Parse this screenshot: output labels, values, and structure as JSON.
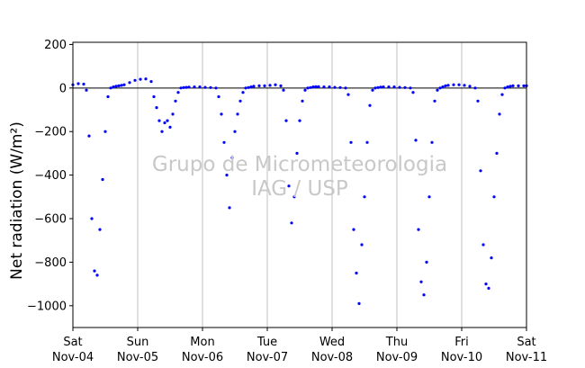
{
  "chart_data": {
    "type": "scatter",
    "title": "",
    "ylabel": "Net radiation (W/m²)",
    "ylim": [
      -1100,
      210
    ],
    "xlim": [
      "2017-11-04",
      "2017-11-11"
    ],
    "yticks": [
      200,
      0,
      -200,
      -400,
      -600,
      -800,
      -1000
    ],
    "xticks": [
      {
        "day": "Sat",
        "date": "Nov-04"
      },
      {
        "day": "Sun",
        "date": "Nov-05"
      },
      {
        "day": "Mon",
        "date": "Nov-06"
      },
      {
        "day": "Tue",
        "date": "Nov-07"
      },
      {
        "day": "Wed",
        "date": "Nov-08"
      },
      {
        "day": "Thu",
        "date": "Nov-09"
      },
      {
        "day": "Fri",
        "date": "Nov-10"
      },
      {
        "day": "Sat",
        "date": "Nov-11"
      }
    ],
    "grid": "vertical",
    "zero_line": true,
    "marker_color": "#0000ff",
    "watermark": [
      "Grupo de Micrometeorologia",
      "IAG / USP"
    ],
    "series": [
      {
        "name": "",
        "x": [
          "2017-11-04 00:00",
          "2017-11-04 02:00",
          "2017-11-04 04:00",
          "2017-11-04 05:00",
          "2017-11-04 06:00",
          "2017-11-04 07:00",
          "2017-11-04 08:00",
          "2017-11-04 09:00",
          "2017-11-04 10:00",
          "2017-11-04 11:00",
          "2017-11-04 12:00",
          "2017-11-04 13:00",
          "2017-11-04 14:00",
          "2017-11-04 15:00",
          "2017-11-04 16:00",
          "2017-11-04 17:00",
          "2017-11-04 18:00",
          "2017-11-04 19:00",
          "2017-11-04 21:00",
          "2017-11-04 23:00",
          "2017-11-05 01:00",
          "2017-11-05 03:00",
          "2017-11-05 05:00",
          "2017-11-05 06:00",
          "2017-11-05 07:00",
          "2017-11-05 08:00",
          "2017-11-05 09:00",
          "2017-11-05 10:00",
          "2017-11-05 11:00",
          "2017-11-05 12:00",
          "2017-11-05 13:00",
          "2017-11-05 14:00",
          "2017-11-05 15:00",
          "2017-11-05 16:00",
          "2017-11-05 17:00",
          "2017-11-05 18:00",
          "2017-11-05 19:00",
          "2017-11-05 21:00",
          "2017-11-05 23:00",
          "2017-11-06 01:00",
          "2017-11-06 03:00",
          "2017-11-06 05:00",
          "2017-11-06 06:00",
          "2017-11-06 07:00",
          "2017-11-06 08:00",
          "2017-11-06 09:00",
          "2017-11-06 10:00",
          "2017-11-06 11:00",
          "2017-11-06 12:00",
          "2017-11-06 13:00",
          "2017-11-06 14:00",
          "2017-11-06 15:00",
          "2017-11-06 16:00",
          "2017-11-06 17:00",
          "2017-11-06 18:00",
          "2017-11-06 19:00",
          "2017-11-06 21:00",
          "2017-11-06 23:00",
          "2017-11-07 01:00",
          "2017-11-07 03:00",
          "2017-11-07 05:00",
          "2017-11-07 06:00",
          "2017-11-07 07:00",
          "2017-11-07 08:00",
          "2017-11-07 09:00",
          "2017-11-07 10:00",
          "2017-11-07 11:00",
          "2017-11-07 12:00",
          "2017-11-07 13:00",
          "2017-11-07 14:00",
          "2017-11-07 15:00",
          "2017-11-07 16:00",
          "2017-11-07 17:00",
          "2017-11-07 18:00",
          "2017-11-07 19:00",
          "2017-11-07 21:00",
          "2017-11-07 23:00",
          "2017-11-08 01:00",
          "2017-11-08 03:00",
          "2017-11-08 05:00",
          "2017-11-08 06:00",
          "2017-11-08 07:00",
          "2017-11-08 08:00",
          "2017-11-08 09:00",
          "2017-11-08 10:00",
          "2017-11-08 11:00",
          "2017-11-08 12:00",
          "2017-11-08 13:00",
          "2017-11-08 14:00",
          "2017-11-08 15:00",
          "2017-11-08 16:00",
          "2017-11-08 17:00",
          "2017-11-08 18:00",
          "2017-11-08 19:00",
          "2017-11-08 21:00",
          "2017-11-08 23:00",
          "2017-11-09 01:00",
          "2017-11-09 03:00",
          "2017-11-09 05:00",
          "2017-11-09 06:00",
          "2017-11-09 07:00",
          "2017-11-09 08:00",
          "2017-11-09 09:00",
          "2017-11-09 10:00",
          "2017-11-09 11:00",
          "2017-11-09 12:00",
          "2017-11-09 13:00",
          "2017-11-09 14:00",
          "2017-11-09 15:00",
          "2017-11-09 16:00",
          "2017-11-09 17:00",
          "2017-11-09 18:00",
          "2017-11-09 19:00",
          "2017-11-09 21:00",
          "2017-11-09 23:00",
          "2017-11-10 01:00",
          "2017-11-10 03:00",
          "2017-11-10 05:00",
          "2017-11-10 06:00",
          "2017-11-10 07:00",
          "2017-11-10 08:00",
          "2017-11-10 09:00",
          "2017-11-10 10:00",
          "2017-11-10 11:00",
          "2017-11-10 12:00",
          "2017-11-10 13:00",
          "2017-11-10 14:00",
          "2017-11-10 15:00",
          "2017-11-10 16:00",
          "2017-11-10 17:00",
          "2017-11-10 18:00",
          "2017-11-10 19:00",
          "2017-11-10 21:00",
          "2017-11-10 23:00",
          "2017-11-11 00:00"
        ],
        "y": [
          15,
          20,
          18,
          -10,
          -220,
          -600,
          -840,
          -860,
          -650,
          -420,
          -200,
          -40,
          0,
          5,
          8,
          10,
          12,
          15,
          25,
          35,
          40,
          42,
          30,
          -40,
          -90,
          -150,
          -200,
          -160,
          -150,
          -180,
          -120,
          -60,
          -20,
          0,
          2,
          3,
          4,
          5,
          5,
          3,
          2,
          0,
          -40,
          -120,
          -250,
          -400,
          -550,
          -320,
          -200,
          -120,
          -60,
          -20,
          0,
          2,
          5,
          8,
          10,
          10,
          12,
          15,
          10,
          -10,
          -150,
          -450,
          -620,
          -500,
          -300,
          -150,
          -60,
          -10,
          0,
          2,
          5,
          6,
          6,
          5,
          5,
          3,
          2,
          0,
          -30,
          -250,
          -650,
          -850,
          -990,
          -720,
          -500,
          -250,
          -80,
          -10,
          0,
          2,
          4,
          5,
          5,
          5,
          3,
          2,
          0,
          -20,
          -240,
          -650,
          -890,
          -950,
          -800,
          -500,
          -250,
          -60,
          -10,
          0,
          5,
          10,
          12,
          15,
          15,
          12,
          8,
          0,
          -60,
          -380,
          -720,
          -900,
          -920,
          -780,
          -500,
          -300,
          -120,
          -30,
          0,
          5,
          8,
          10,
          10,
          10,
          10
        ]
      }
    ]
  }
}
